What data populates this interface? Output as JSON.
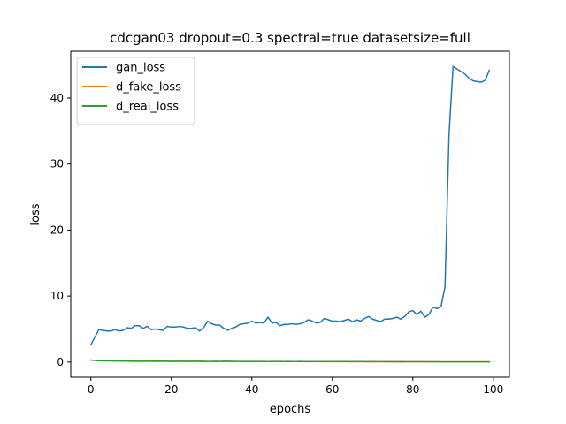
{
  "chart_data": {
    "type": "line",
    "title": "cdcgan03 dropout=0.3 spectral=true datasetsize=full",
    "xlabel": "epochs",
    "ylabel": "loss",
    "xlim": [
      -5,
      104
    ],
    "ylim": [
      -2.3,
      47.1
    ],
    "xticks": [
      0,
      20,
      40,
      60,
      80,
      100
    ],
    "yticks": [
      0,
      10,
      20,
      30,
      40
    ],
    "grid": false,
    "legend_position": "top-left",
    "series": [
      {
        "name": "gan_loss",
        "color": "#1f77b4",
        "x": [
          0,
          1,
          2,
          3,
          4,
          5,
          6,
          7,
          8,
          9,
          10,
          11,
          12,
          13,
          14,
          15,
          16,
          17,
          18,
          19,
          20,
          21,
          22,
          23,
          24,
          25,
          26,
          27,
          28,
          29,
          30,
          31,
          32,
          33,
          34,
          35,
          36,
          37,
          38,
          39,
          40,
          41,
          42,
          43,
          44,
          45,
          46,
          47,
          48,
          49,
          50,
          51,
          52,
          53,
          54,
          55,
          56,
          57,
          58,
          59,
          60,
          61,
          62,
          63,
          64,
          65,
          66,
          67,
          68,
          69,
          70,
          71,
          72,
          73,
          74,
          75,
          76,
          77,
          78,
          79,
          80,
          81,
          82,
          83,
          84,
          85,
          86,
          87,
          88,
          89,
          90,
          91,
          92,
          93,
          94,
          95,
          96,
          97,
          98,
          99
        ],
        "y": [
          2.6,
          3.8,
          4.9,
          4.8,
          4.7,
          4.7,
          4.9,
          4.7,
          4.8,
          5.2,
          5.1,
          5.5,
          5.5,
          5.1,
          5.4,
          4.9,
          5.0,
          4.9,
          4.8,
          5.4,
          5.3,
          5.3,
          5.4,
          5.3,
          5.1,
          5.1,
          5.2,
          4.7,
          5.2,
          6.2,
          5.8,
          5.6,
          5.6,
          5.1,
          4.8,
          5.1,
          5.3,
          5.7,
          5.8,
          5.9,
          6.2,
          5.9,
          6.0,
          5.9,
          6.8,
          5.9,
          6.0,
          5.5,
          5.7,
          5.7,
          5.8,
          5.7,
          5.8,
          6.0,
          6.4,
          6.2,
          5.9,
          6.0,
          6.6,
          6.4,
          6.2,
          6.2,
          6.1,
          6.3,
          6.5,
          6.1,
          6.4,
          6.2,
          6.6,
          6.9,
          6.5,
          6.3,
          6.1,
          6.5,
          6.5,
          6.6,
          6.8,
          6.5,
          6.9,
          7.6,
          7.8,
          7.2,
          7.7,
          6.8,
          7.2,
          8.3,
          8.1,
          8.4,
          11.4,
          34.5,
          44.8,
          44.4,
          44.0,
          43.6,
          43.0,
          42.6,
          42.5,
          42.4,
          42.7,
          44.2
        ]
      },
      {
        "name": "d_fake_loss",
        "color": "#ff7f0e",
        "x": [
          0,
          10,
          20,
          30,
          40,
          50,
          60,
          70,
          80,
          90,
          99
        ],
        "y": [
          0.3,
          0.12,
          0.1,
          0.1,
          0.08,
          0.07,
          0.06,
          0.05,
          0.04,
          0.03,
          0.03
        ]
      },
      {
        "name": "d_real_loss",
        "color": "#2ca02c",
        "x": [
          0,
          1,
          2,
          3,
          4,
          5,
          6,
          7,
          8,
          9,
          10,
          11,
          12,
          13,
          14,
          15,
          16,
          17,
          18,
          19,
          20,
          21,
          22,
          23,
          24,
          25,
          26,
          27,
          28,
          29,
          30,
          31,
          32,
          33,
          34,
          35,
          36,
          37,
          38,
          39,
          40,
          41,
          42,
          43,
          44,
          45,
          46,
          47,
          48,
          49,
          50,
          51,
          52,
          53,
          54,
          55,
          56,
          57,
          58,
          59,
          60,
          61,
          62,
          63,
          64,
          65,
          66,
          67,
          68,
          69,
          70,
          71,
          72,
          73,
          74,
          75,
          76,
          77,
          78,
          79,
          80,
          81,
          82,
          83,
          84,
          85,
          86,
          87,
          88,
          89,
          90,
          91,
          92,
          93,
          94,
          95,
          96,
          97,
          98,
          99
        ],
        "y": [
          0.3,
          0.25,
          0.2,
          0.18,
          0.17,
          0.17,
          0.16,
          0.18,
          0.15,
          0.14,
          0.14,
          0.13,
          0.15,
          0.13,
          0.14,
          0.15,
          0.13,
          0.14,
          0.14,
          0.12,
          0.12,
          0.12,
          0.13,
          0.12,
          0.11,
          0.12,
          0.12,
          0.13,
          0.11,
          0.1,
          0.1,
          0.11,
          0.1,
          0.12,
          0.13,
          0.11,
          0.1,
          0.1,
          0.09,
          0.1,
          0.09,
          0.1,
          0.1,
          0.09,
          0.08,
          0.09,
          0.1,
          0.09,
          0.08,
          0.09,
          0.08,
          0.08,
          0.09,
          0.08,
          0.08,
          0.07,
          0.08,
          0.08,
          0.07,
          0.08,
          0.07,
          0.07,
          0.08,
          0.07,
          0.07,
          0.06,
          0.07,
          0.07,
          0.06,
          0.06,
          0.07,
          0.06,
          0.06,
          0.06,
          0.05,
          0.06,
          0.05,
          0.06,
          0.05,
          0.05,
          0.05,
          0.05,
          0.04,
          0.05,
          0.04,
          0.04,
          0.04,
          0.03,
          0.03,
          0.02,
          0.02,
          0.02,
          0.02,
          0.02,
          0.02,
          0.02,
          0.02,
          0.02,
          0.03,
          0.03
        ]
      }
    ]
  }
}
